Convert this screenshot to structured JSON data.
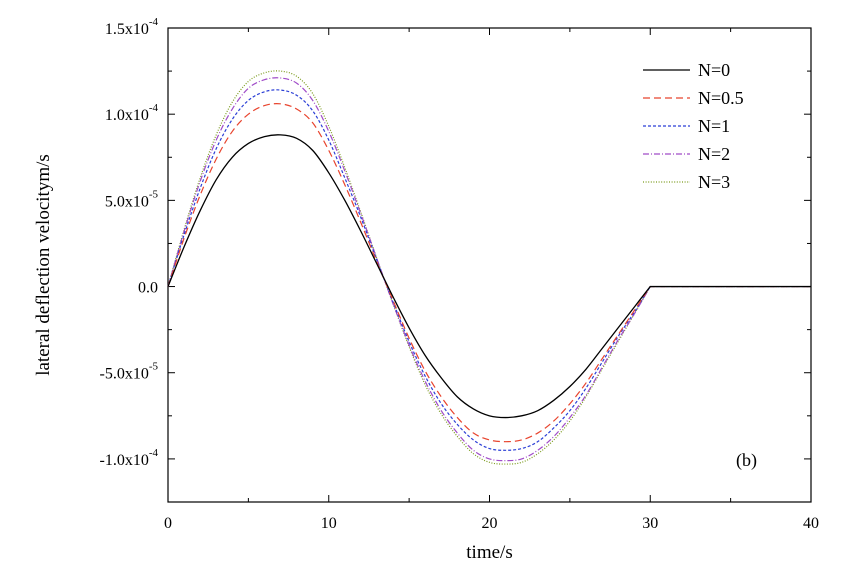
{
  "chart_data": {
    "type": "line",
    "title": "",
    "xlabel": "time/s",
    "ylabel": "lateral deflection velocitym/s",
    "panel_label": "(b)",
    "xlim": [
      0,
      40
    ],
    "ylim": [
      -0.000125,
      0.00015
    ],
    "x_ticks": [
      0,
      10,
      20,
      30,
      40
    ],
    "x_tick_labels": [
      "0",
      "10",
      "20",
      "30",
      "40"
    ],
    "y_ticks": [
      -0.0001,
      -5e-05,
      0,
      5e-05,
      0.0001,
      0.00015
    ],
    "y_tick_labels": [
      {
        "mantissa": "-1.0x10",
        "exp": "-4"
      },
      {
        "mantissa": "-5.0x10",
        "exp": "-5"
      },
      {
        "mantissa": "0.0",
        "exp": ""
      },
      {
        "mantissa": "5.0x10",
        "exp": "-5"
      },
      {
        "mantissa": "1.0x10",
        "exp": "-4"
      },
      {
        "mantissa": "1.5x10",
        "exp": "-4"
      }
    ],
    "grid": false,
    "legend_position": "top-right",
    "x": [
      0,
      1,
      2,
      3,
      4,
      5,
      6,
      7,
      8,
      9,
      10,
      11,
      12,
      13,
      13.5,
      14,
      15,
      16,
      17,
      18,
      19,
      20,
      21,
      22,
      23,
      24,
      25,
      26,
      27,
      28,
      29,
      30,
      31,
      32,
      33,
      34,
      35,
      36,
      37,
      38,
      39,
      40
    ],
    "series": [
      {
        "name": "N=0",
        "color": "#000000",
        "dash": "solid",
        "values": [
          0,
          2.3e-05,
          4.4e-05,
          6.2e-05,
          7.5e-05,
          8.3e-05,
          8.7e-05,
          8.8e-05,
          8.6e-05,
          7.9e-05,
          6.6e-05,
          5e-05,
          3.2e-05,
          1.3e-05,
          3.5e-06,
          -6e-06,
          -2.4e-05,
          -4e-05,
          -5.3e-05,
          -6.4e-05,
          -7.1e-05,
          -7.5e-05,
          -7.6e-05,
          -7.5e-05,
          -7.2e-05,
          -6.6e-05,
          -5.8e-05,
          -4.8e-05,
          -3.6e-05,
          -2.4e-05,
          -1.2e-05,
          0,
          0,
          0,
          0,
          0,
          0,
          0,
          0,
          0,
          0,
          0
        ]
      },
      {
        "name": "N=0.5",
        "color": "#e8442e",
        "dash": "7,4",
        "values": [
          0,
          2.8e-05,
          5.3e-05,
          7.4e-05,
          9e-05,
          0.0001,
          0.000105,
          0.000106,
          0.000103,
          9.5e-05,
          7.9e-05,
          5.9e-05,
          3.7e-05,
          1.4e-05,
          3e-06,
          -8e-06,
          -3e-05,
          -4.9e-05,
          -6.4e-05,
          -7.6e-05,
          -8.5e-05,
          -8.9e-05,
          -9e-05,
          -8.9e-05,
          -8.5e-05,
          -7.8e-05,
          -6.8e-05,
          -5.6e-05,
          -4.2e-05,
          -2.8e-05,
          -1.4e-05,
          0,
          0,
          0,
          0,
          0,
          0,
          0,
          0,
          0,
          0,
          0
        ]
      },
      {
        "name": "N=1",
        "color": "#2b3fd6",
        "dash": "3,2",
        "values": [
          0,
          3e-05,
          5.7e-05,
          8e-05,
          9.7e-05,
          0.000108,
          0.000113,
          0.000114,
          0.000111,
          0.000102,
          8.5e-05,
          6.3e-05,
          4e-05,
          1.5e-05,
          3e-06,
          -9e-06,
          -3.2e-05,
          -5.2e-05,
          -6.8e-05,
          -8e-05,
          -8.9e-05,
          -9.4e-05,
          -9.5e-05,
          -9.4e-05,
          -9e-05,
          -8.2e-05,
          -7.2e-05,
          -5.9e-05,
          -4.4e-05,
          -2.9e-05,
          -1.5e-05,
          0,
          0,
          0,
          0,
          0,
          0,
          0,
          0,
          0,
          0,
          0
        ]
      },
      {
        "name": "N=2",
        "color": "#a04cc8",
        "dash": "6,2,1,2",
        "values": [
          0,
          3.2e-05,
          6.1e-05,
          8.5e-05,
          0.000103,
          0.000115,
          0.00012,
          0.000121,
          0.000118,
          0.000108,
          9e-05,
          6.7e-05,
          4.2e-05,
          1.6e-05,
          3e-06,
          -1e-05,
          -3.4e-05,
          -5.5e-05,
          -7.2e-05,
          -8.5e-05,
          -9.5e-05,
          -0.0001,
          -0.000101,
          -0.0001,
          -9.5e-05,
          -8.7e-05,
          -7.6e-05,
          -6.3e-05,
          -4.7e-05,
          -3.1e-05,
          -1.6e-05,
          0,
          0,
          0,
          0,
          0,
          0,
          0,
          0,
          0,
          0,
          0
        ]
      },
      {
        "name": "N=3",
        "color": "#7a9a1c",
        "dash": "1,1.6",
        "values": [
          0,
          3.3e-05,
          6.3e-05,
          8.8e-05,
          0.000107,
          0.000119,
          0.000124,
          0.000125,
          0.000122,
          0.000112,
          9.3e-05,
          6.9e-05,
          4.3e-05,
          1.6e-05,
          3e-06,
          -1e-05,
          -3.5e-05,
          -5.7e-05,
          -7.4e-05,
          -8.7e-05,
          -9.7e-05,
          -0.000102,
          -0.000103,
          -0.000102,
          -9.7e-05,
          -8.9e-05,
          -7.8e-05,
          -6.4e-05,
          -4.8e-05,
          -3.2e-05,
          -1.6e-05,
          0,
          0,
          0,
          0,
          0,
          0,
          0,
          0,
          0,
          0,
          0
        ]
      }
    ]
  }
}
